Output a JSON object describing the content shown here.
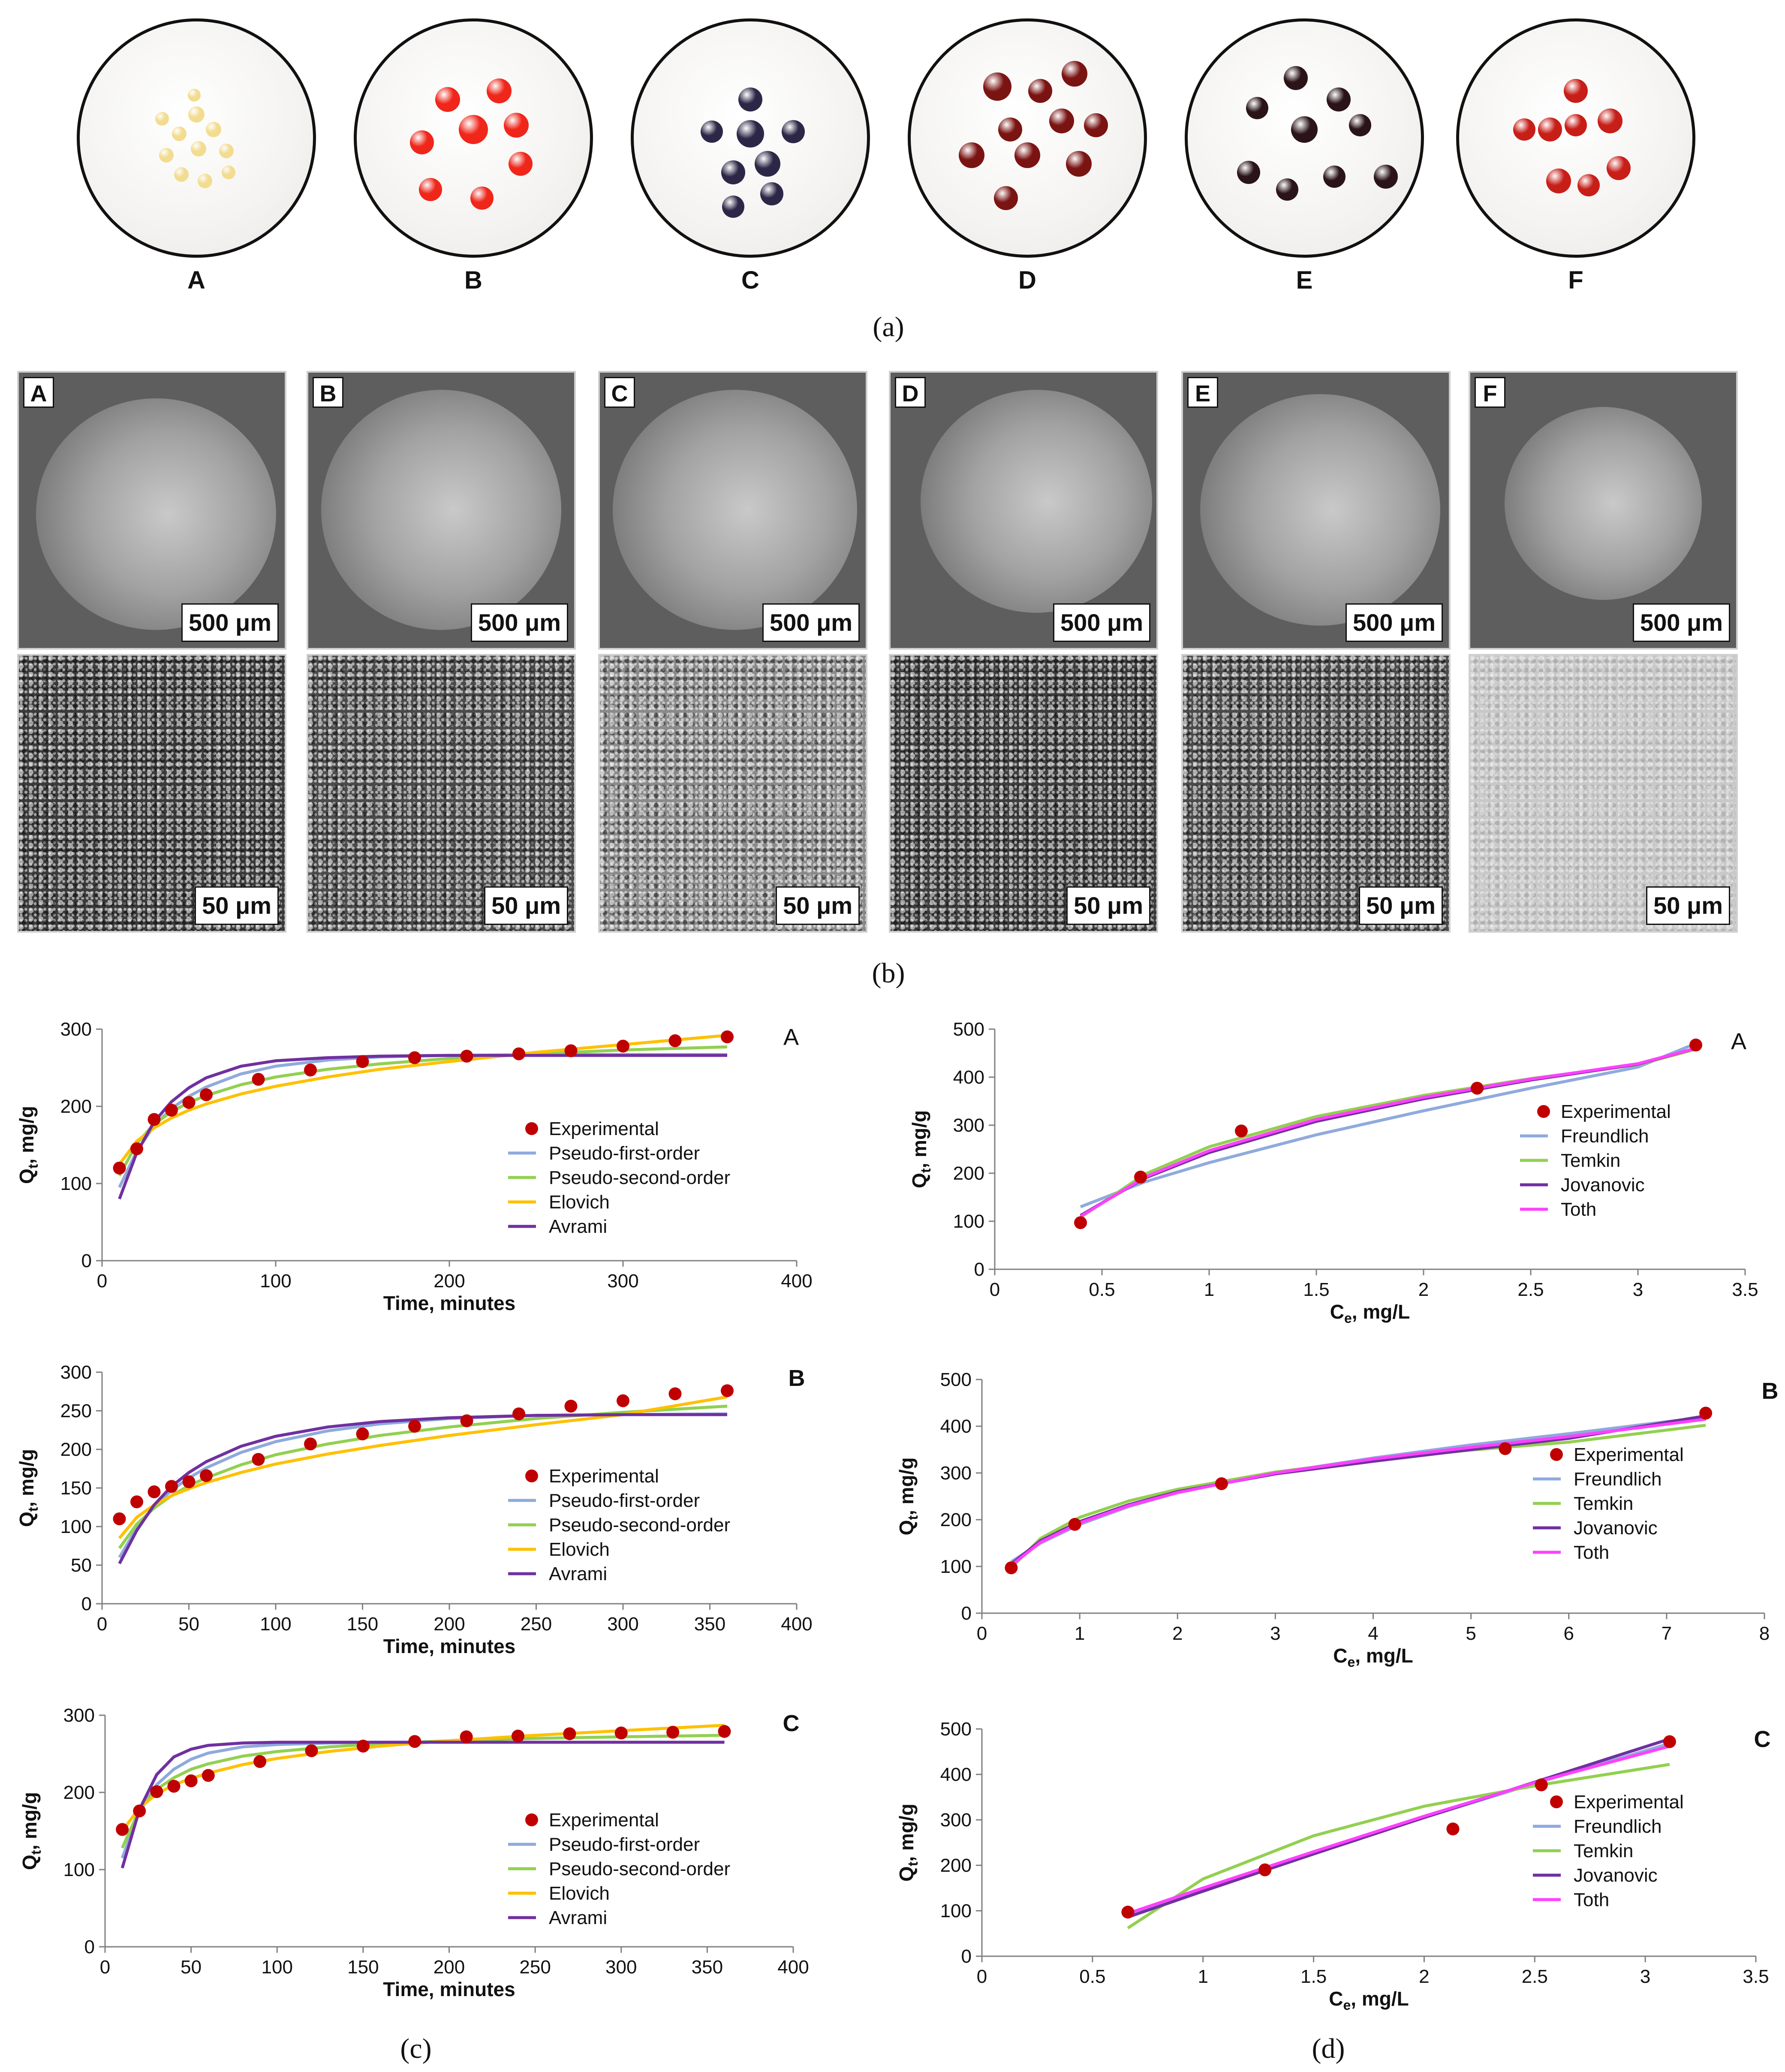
{
  "panel_a": {
    "caption": "(a)",
    "dishes": [
      {
        "letter": "A",
        "bead_color": "#f2dc8f"
      },
      {
        "letter": "B",
        "bead_color": "#f0261a"
      },
      {
        "letter": "C",
        "bead_color": "#2d2747"
      },
      {
        "letter": "D",
        "bead_color": "#7a1412"
      },
      {
        "letter": "E",
        "bead_color": "#2a1418"
      },
      {
        "letter": "F",
        "bead_color": "#c81e18"
      }
    ]
  },
  "panel_b": {
    "caption": "(b)",
    "images": [
      {
        "letter": "A",
        "scale_top": "500 μm",
        "scale_bottom": "50 μm"
      },
      {
        "letter": "B",
        "scale_top": "500 μm",
        "scale_bottom": "50 μm"
      },
      {
        "letter": "C",
        "scale_top": "500 μm",
        "scale_bottom": "50 μm"
      },
      {
        "letter": "D",
        "scale_top": "500 μm",
        "scale_bottom": "50 μm"
      },
      {
        "letter": "E",
        "scale_top": "500 μm",
        "scale_bottom": "50 μm"
      },
      {
        "letter": "F",
        "scale_top": "500 μm",
        "scale_bottom": "50 μm"
      }
    ]
  },
  "captions": {
    "c": "(c)",
    "d": "(d)"
  },
  "colors": {
    "experimental": "#c00000",
    "pseudo_first_order": "#8faadc",
    "pseudo_second_order": "#92d050",
    "elovich": "#ffc000",
    "avrami": "#7030a0",
    "freundlich": "#8faadc",
    "temkin": "#92d050",
    "jovanovic": "#7030a0",
    "toth": "#ff40ff"
  },
  "chart_data": [
    {
      "type": "scatter",
      "id": "c-A",
      "panel_label": "A",
      "xlabel": "Time, minutes",
      "ylabel": "Qt, mg/g",
      "xlim": [
        0,
        400
      ],
      "ylim": [
        0,
        300
      ],
      "xticks": [
        0,
        100,
        200,
        300,
        400
      ],
      "yticks": [
        0,
        100,
        200,
        300
      ],
      "legend_position": "center-right",
      "experimental": {
        "name": "Experimental",
        "x": [
          10,
          20,
          30,
          40,
          50,
          60,
          90,
          120,
          150,
          180,
          210,
          240,
          270,
          300,
          330,
          360
        ],
        "y": [
          120,
          145,
          183,
          195,
          205,
          215,
          235,
          247,
          258,
          263,
          265,
          268,
          272,
          278,
          285,
          290
        ]
      },
      "series": [
        {
          "name": "Pseudo-first-order",
          "x": [
            10,
            20,
            30,
            40,
            50,
            60,
            80,
            100,
            130,
            160,
            200,
            250,
            300,
            360
          ],
          "y": [
            95,
            142,
            175,
            197,
            213,
            225,
            242,
            252,
            260,
            264,
            266,
            267,
            267,
            267
          ]
        },
        {
          "name": "Pseudo-second-order",
          "x": [
            10,
            20,
            30,
            40,
            50,
            60,
            80,
            100,
            130,
            160,
            200,
            250,
            300,
            360
          ],
          "y": [
            110,
            152,
            177,
            193,
            205,
            214,
            228,
            238,
            248,
            255,
            262,
            268,
            273,
            277
          ]
        },
        {
          "name": "Elovich",
          "x": [
            10,
            20,
            30,
            40,
            50,
            60,
            80,
            100,
            130,
            160,
            200,
            250,
            300,
            360
          ],
          "y": [
            125,
            155,
            172,
            185,
            195,
            203,
            216,
            226,
            238,
            248,
            258,
            270,
            280,
            292
          ]
        },
        {
          "name": "Avrami",
          "x": [
            10,
            20,
            30,
            40,
            50,
            60,
            80,
            100,
            130,
            160,
            200,
            250,
            300,
            360
          ],
          "y": [
            80,
            140,
            180,
            206,
            224,
            237,
            252,
            259,
            263,
            265,
            266,
            266,
            266,
            266
          ]
        }
      ]
    },
    {
      "type": "scatter",
      "id": "c-B",
      "panel_label": "B",
      "xlabel": "Time, minutes",
      "ylabel": "Qt, mg/g",
      "xlim": [
        0,
        400
      ],
      "ylim": [
        0,
        300
      ],
      "xticks": [
        0,
        50,
        100,
        150,
        200,
        250,
        300,
        350,
        400
      ],
      "yticks": [
        0,
        50,
        100,
        150,
        200,
        250,
        300
      ],
      "legend_position": "bottom-right",
      "experimental": {
        "name": "Experimental",
        "x": [
          10,
          20,
          30,
          40,
          50,
          60,
          90,
          120,
          150,
          180,
          210,
          240,
          270,
          300,
          330,
          360
        ],
        "y": [
          110,
          132,
          145,
          152,
          158,
          166,
          187,
          207,
          220,
          230,
          237,
          246,
          256,
          263,
          272,
          276
        ]
      },
      "series": [
        {
          "name": "Pseudo-first-order",
          "x": [
            10,
            20,
            30,
            40,
            50,
            60,
            80,
            100,
            130,
            160,
            200,
            250,
            300,
            360
          ],
          "y": [
            60,
            98,
            126,
            147,
            163,
            176,
            196,
            210,
            224,
            233,
            240,
            244,
            245,
            246
          ]
        },
        {
          "name": "Pseudo-second-order",
          "x": [
            10,
            20,
            30,
            40,
            50,
            60,
            80,
            100,
            130,
            160,
            200,
            250,
            300,
            360
          ],
          "y": [
            72,
            103,
            124,
            140,
            153,
            163,
            180,
            193,
            207,
            218,
            229,
            240,
            248,
            256
          ]
        },
        {
          "name": "Elovich",
          "x": [
            10,
            20,
            30,
            40,
            50,
            60,
            80,
            100,
            130,
            160,
            200,
            250,
            300,
            360
          ],
          "y": [
            85,
            112,
            128,
            140,
            149,
            157,
            170,
            181,
            194,
            205,
            218,
            232,
            245,
            268
          ]
        },
        {
          "name": "Avrami",
          "x": [
            10,
            20,
            30,
            40,
            50,
            60,
            80,
            100,
            130,
            160,
            200,
            250,
            300,
            360
          ],
          "y": [
            52,
            95,
            128,
            152,
            170,
            184,
            204,
            217,
            229,
            236,
            241,
            244,
            245,
            245
          ]
        }
      ]
    },
    {
      "type": "scatter",
      "id": "c-C",
      "panel_label": "C",
      "xlabel": "Time, minutes",
      "ylabel": "Qt, mg/g",
      "xlim": [
        0,
        400
      ],
      "ylim": [
        0,
        300
      ],
      "xticks": [
        0,
        50,
        100,
        150,
        200,
        250,
        300,
        350,
        400
      ],
      "yticks": [
        0,
        100,
        200,
        300
      ],
      "legend_position": "bottom-right",
      "experimental": {
        "name": "Experimental",
        "x": [
          10,
          20,
          30,
          40,
          50,
          60,
          90,
          120,
          150,
          180,
          210,
          240,
          270,
          300,
          330,
          360
        ],
        "y": [
          152,
          176,
          201,
          208,
          215,
          222,
          240,
          254,
          260,
          266,
          272,
          273,
          276,
          277,
          278,
          279
        ]
      },
      "series": [
        {
          "name": "Pseudo-first-order",
          "x": [
            10,
            20,
            30,
            40,
            50,
            60,
            80,
            100,
            130,
            160,
            200,
            250,
            300,
            360
          ],
          "y": [
            115,
            175,
            210,
            230,
            243,
            251,
            259,
            262,
            264,
            265,
            265,
            265,
            265,
            265
          ]
        },
        {
          "name": "Pseudo-second-order",
          "x": [
            10,
            20,
            30,
            40,
            50,
            60,
            80,
            100,
            130,
            160,
            200,
            250,
            300,
            360
          ],
          "y": [
            128,
            178,
            204,
            219,
            230,
            237,
            247,
            253,
            259,
            263,
            267,
            270,
            272,
            274
          ]
        },
        {
          "name": "Elovich",
          "x": [
            10,
            20,
            30,
            40,
            50,
            60,
            80,
            100,
            130,
            160,
            200,
            250,
            300,
            360
          ],
          "y": [
            150,
            180,
            198,
            210,
            218,
            225,
            236,
            244,
            253,
            260,
            267,
            274,
            280,
            287
          ]
        },
        {
          "name": "Avrami",
          "x": [
            10,
            20,
            30,
            40,
            50,
            60,
            80,
            100,
            130,
            160,
            200,
            250,
            300,
            360
          ],
          "y": [
            102,
            178,
            223,
            246,
            256,
            261,
            264,
            265,
            265,
            265,
            265,
            265,
            265,
            265
          ]
        }
      ]
    },
    {
      "type": "scatter",
      "id": "d-A",
      "panel_label": "A",
      "xlabel": "Ce, mg/L",
      "ylabel": "Qt, mg/g",
      "xlim": [
        0,
        3.5
      ],
      "ylim": [
        0,
        500
      ],
      "xticks": [
        0,
        0.5,
        1,
        1.5,
        2,
        2.5,
        3,
        3.5
      ],
      "yticks": [
        0,
        100,
        200,
        300,
        400,
        500
      ],
      "legend_position": "center-right",
      "experimental": {
        "name": "Experimental",
        "x": [
          0.4,
          0.68,
          1.15,
          2.25,
          3.27
        ],
        "y": [
          97,
          192,
          288,
          377,
          467
        ]
      },
      "series": [
        {
          "name": "Freundlich",
          "x": [
            0.4,
            0.7,
            1.0,
            1.5,
            2.0,
            2.5,
            3.0,
            3.27
          ],
          "y": [
            130,
            182,
            222,
            280,
            330,
            377,
            421,
            470
          ]
        },
        {
          "name": "Temkin",
          "x": [
            0.4,
            0.7,
            1.0,
            1.5,
            2.0,
            2.5,
            3.0,
            3.27
          ],
          "y": [
            108,
            198,
            255,
            318,
            362,
            397,
            426,
            458
          ]
        },
        {
          "name": "Jovanovic",
          "x": [
            0.4,
            0.7,
            1.0,
            1.5,
            2.0,
            2.5,
            3.0,
            3.27
          ],
          "y": [
            112,
            190,
            243,
            308,
            355,
            394,
            427,
            460
          ]
        },
        {
          "name": "Toth",
          "x": [
            0.4,
            0.7,
            1.0,
            1.5,
            2.0,
            2.5,
            3.0,
            3.27
          ],
          "y": [
            110,
            192,
            247,
            312,
            358,
            396,
            428,
            460
          ]
        }
      ]
    },
    {
      "type": "scatter",
      "id": "d-B",
      "panel_label": "B",
      "xlabel": "Ce, mg/L",
      "ylabel": "Qt, mg/g",
      "xlim": [
        0,
        8
      ],
      "ylim": [
        0,
        500
      ],
      "xticks": [
        0,
        1,
        2,
        3,
        4,
        5,
        6,
        7,
        8
      ],
      "yticks": [
        0,
        100,
        200,
        300,
        400,
        500
      ],
      "legend_position": "bottom-right",
      "experimental": {
        "name": "Experimental",
        "x": [
          0.3,
          0.95,
          2.45,
          5.35,
          7.4
        ],
        "y": [
          97,
          190,
          277,
          352,
          428
        ]
      },
      "series": [
        {
          "name": "Freundlich",
          "x": [
            0.3,
            0.6,
            1,
            1.5,
            2,
            3,
            4,
            5,
            6,
            7.4
          ],
          "y": [
            110,
            150,
            190,
            228,
            258,
            300,
            332,
            360,
            384,
            420
          ]
        },
        {
          "name": "Temkin",
          "x": [
            0.3,
            0.6,
            1,
            1.5,
            2,
            3,
            4,
            5,
            6,
            7.4
          ],
          "y": [
            97,
            160,
            205,
            240,
            265,
            302,
            328,
            349,
            366,
            402
          ]
        },
        {
          "name": "Jovanovic",
          "x": [
            0.3,
            0.6,
            1,
            1.5,
            2,
            3,
            4,
            5,
            6,
            7.4
          ],
          "y": [
            105,
            155,
            196,
            232,
            260,
            298,
            325,
            350,
            374,
            422
          ]
        },
        {
          "name": "Toth",
          "x": [
            0.3,
            0.6,
            1,
            1.5,
            2,
            3,
            4,
            5,
            6,
            7.4
          ],
          "y": [
            102,
            152,
            193,
            230,
            258,
            300,
            330,
            355,
            378,
            415
          ]
        }
      ]
    },
    {
      "type": "scatter",
      "id": "d-C",
      "panel_label": "C",
      "xlabel": "Ce, mg/L",
      "ylabel": "Qt, mg/g",
      "xlim": [
        0,
        3.5
      ],
      "ylim": [
        0,
        500
      ],
      "xticks": [
        0,
        0.5,
        1,
        1.5,
        2,
        2.5,
        3,
        3.5
      ],
      "yticks": [
        0,
        100,
        200,
        300,
        400,
        500
      ],
      "legend_position": "bottom-right",
      "experimental": {
        "name": "Experimental",
        "x": [
          0.66,
          1.28,
          2.13,
          2.53,
          3.11
        ],
        "y": [
          97,
          190,
          280,
          377,
          472
        ]
      },
      "series": [
        {
          "name": "Freundlich",
          "x": [
            0.66,
            1.0,
            1.5,
            2.0,
            2.5,
            3.11
          ],
          "y": [
            92,
            148,
            228,
            305,
            380,
            468
          ]
        },
        {
          "name": "Temkin",
          "x": [
            0.66,
            1.0,
            1.5,
            2.0,
            2.5,
            3.11
          ],
          "y": [
            62,
            170,
            265,
            330,
            375,
            422
          ]
        },
        {
          "name": "Jovanovic",
          "x": [
            0.66,
            1.0,
            1.5,
            2.0,
            2.5,
            3.11
          ],
          "y": [
            86,
            143,
            225,
            305,
            383,
            478
          ]
        },
        {
          "name": "Toth",
          "x": [
            0.66,
            1.0,
            1.5,
            2.0,
            2.5,
            3.11
          ],
          "y": [
            94,
            150,
            230,
            308,
            382,
            462
          ]
        }
      ]
    }
  ]
}
